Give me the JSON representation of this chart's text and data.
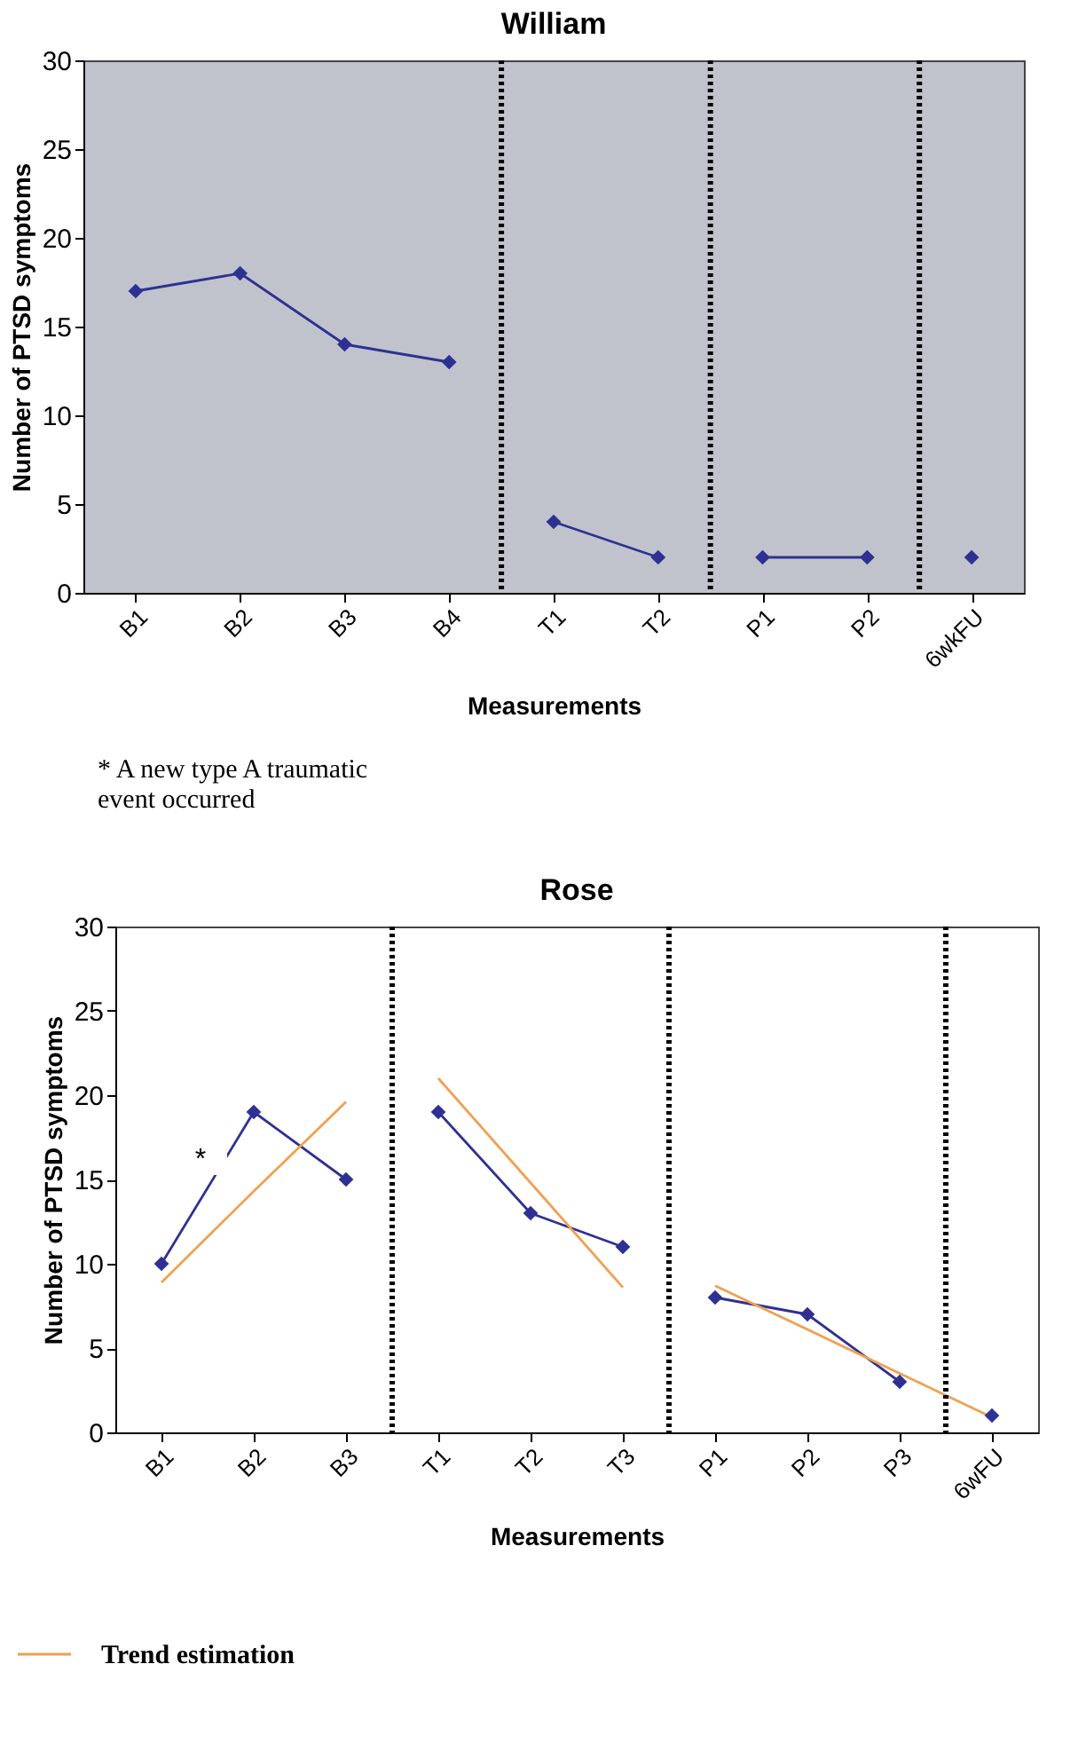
{
  "chart_data": [
    {
      "type": "line",
      "title": "William",
      "xlabel": "Measurements",
      "ylabel": "Number of PTSD symptoms",
      "categories": [
        "B1",
        "B2",
        "B3",
        "B4",
        "T1",
        "T2",
        "P1",
        "P2",
        "6wkFU"
      ],
      "series": [
        {
          "color": "#2e3192",
          "values": [
            17,
            18,
            14,
            13,
            null,
            null,
            null,
            null,
            null
          ]
        },
        {
          "color": "#2e3192",
          "values": [
            null,
            null,
            null,
            null,
            4,
            2,
            null,
            null,
            null
          ]
        },
        {
          "color": "#2e3192",
          "values": [
            null,
            null,
            null,
            null,
            null,
            null,
            2,
            2,
            null
          ]
        },
        {
          "color": "#2e3192",
          "values": [
            null,
            null,
            null,
            null,
            null,
            null,
            null,
            null,
            2
          ]
        }
      ],
      "ylim": [
        0,
        30
      ],
      "yticks": [
        0,
        5,
        10,
        15,
        20,
        25,
        30
      ],
      "marker": "diamond",
      "grid": false,
      "legend": false
    },
    {
      "type": "line",
      "title": "Rose",
      "xlabel": "Measurements",
      "ylabel": "Number of PTSD symptoms",
      "categories": [
        "B1",
        "B2",
        "B3",
        "T1",
        "T2",
        "T3",
        "P1",
        "P2",
        "P3",
        "6wFU"
      ],
      "series": [
        {
          "color": "#2e3192",
          "values": [
            10,
            19,
            15,
            null,
            null,
            null,
            null,
            null,
            null,
            null
          ]
        },
        {
          "color": "#2e3192",
          "values": [
            null,
            null,
            null,
            19,
            13,
            11,
            null,
            null,
            null,
            null
          ]
        },
        {
          "color": "#2e3192",
          "values": [
            null,
            null,
            null,
            null,
            null,
            null,
            8,
            7,
            3,
            null
          ]
        },
        {
          "color": "#2e3192",
          "values": [
            null,
            null,
            null,
            null,
            null,
            null,
            null,
            null,
            null,
            1
          ]
        },
        {
          "name": "Trend estimation",
          "type": "line",
          "marker": "none",
          "color": "#f0a050",
          "values": [
            8.9,
            14.3,
            19.6,
            null,
            null,
            null,
            null,
            null,
            null,
            null
          ]
        },
        {
          "type": "line",
          "marker": "none",
          "color": "#f0a050",
          "values": [
            null,
            null,
            null,
            21,
            14.8,
            8.6,
            null,
            null,
            null,
            null
          ]
        },
        {
          "type": "line",
          "marker": "none",
          "color": "#f0a050",
          "values": [
            null,
            null,
            null,
            null,
            null,
            null,
            8.7,
            6.1,
            3.5,
            0.9
          ]
        }
      ],
      "ylim": [
        0,
        30
      ],
      "yticks": [
        0,
        5,
        10,
        15,
        20,
        25,
        30
      ],
      "marker": "diamond",
      "grid": false,
      "legend": "bottom left",
      "annotations": [
        "*",
        "* A new type A traumatic event occurred"
      ]
    }
  ]
}
